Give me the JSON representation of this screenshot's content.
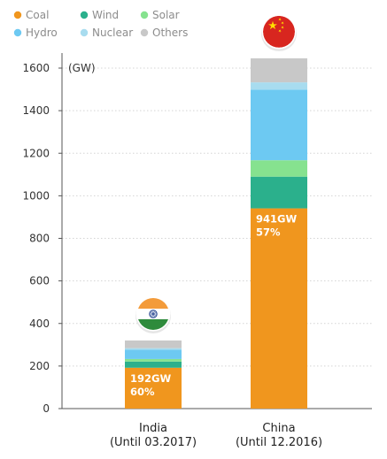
{
  "chart_data": {
    "type": "bar",
    "stacked": true,
    "ylabel": "(GW)",
    "ylim": [
      0,
      1650
    ],
    "yticks": [
      0,
      200,
      400,
      600,
      800,
      1000,
      1200,
      1400,
      1600
    ],
    "grid": "horizontal dotted",
    "legend_position": "top-left",
    "categories": [
      {
        "line1": "India",
        "line2": "(Until 03.2017)",
        "flag": "india-flag"
      },
      {
        "line1": "China",
        "line2": "(Until 12.2016)",
        "flag": "china-flag"
      }
    ],
    "series": [
      {
        "name": "Coal",
        "color": "#f0961e",
        "values": [
          192,
          941
        ]
      },
      {
        "name": "Wind",
        "color": "#2bb08c",
        "values": [
          29,
          149
        ]
      },
      {
        "name": "Solar",
        "color": "#86e28f",
        "values": [
          12,
          77
        ]
      },
      {
        "name": "Hydro",
        "color": "#6dc9f2",
        "values": [
          44,
          332
        ]
      },
      {
        "name": "Nuclear",
        "color": "#a8dcef",
        "values": [
          7,
          34
        ]
      },
      {
        "name": "Others",
        "color": "#c8c8c8",
        "values": [
          36,
          113
        ]
      }
    ],
    "annotations": [
      {
        "category": 0,
        "lines": [
          "192GW",
          "60%"
        ]
      },
      {
        "category": 1,
        "lines": [
          "941GW",
          "57%"
        ]
      }
    ]
  }
}
